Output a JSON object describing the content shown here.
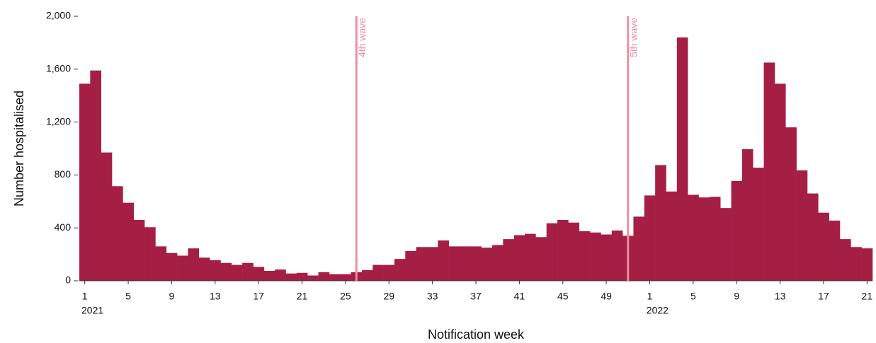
{
  "chart_data": {
    "type": "bar",
    "x_label": "Notification week",
    "y_label": "Number hospitalised",
    "categories": [
      "1",
      null,
      null,
      null,
      "5",
      null,
      null,
      null,
      "9",
      null,
      null,
      null,
      "13",
      null,
      null,
      null,
      "17",
      null,
      null,
      null,
      "21",
      null,
      null,
      null,
      "25",
      null,
      null,
      null,
      "29",
      null,
      null,
      null,
      "33",
      null,
      null,
      null,
      "37",
      null,
      null,
      null,
      "41",
      null,
      null,
      null,
      "45",
      null,
      null,
      null,
      "49",
      null,
      null,
      null,
      "1",
      null,
      null,
      null,
      "5",
      null,
      null,
      null,
      "9",
      null,
      null,
      null,
      "13",
      null,
      null,
      null,
      "17",
      null,
      null,
      null,
      "21"
    ],
    "groups": [
      {
        "label": "2021",
        "size": 52
      },
      {
        "label": "2022",
        "size": 21
      }
    ],
    "values": [
      1490,
      1590,
      970,
      715,
      590,
      460,
      405,
      260,
      210,
      190,
      245,
      175,
      155,
      135,
      120,
      135,
      105,
      75,
      85,
      55,
      60,
      40,
      65,
      50,
      50,
      65,
      80,
      120,
      120,
      165,
      225,
      255,
      255,
      305,
      260,
      260,
      260,
      250,
      270,
      315,
      345,
      355,
      330,
      435,
      460,
      440,
      375,
      365,
      350,
      380,
      340,
      485,
      645,
      875,
      675,
      1840,
      650,
      630,
      635,
      550,
      755,
      995,
      855,
      1650,
      1490,
      1160,
      835,
      660,
      515,
      455,
      315,
      255,
      245
    ],
    "color": "#a51f45",
    "ylim": [
      0,
      2000
    ],
    "yticks": [
      0,
      400,
      800,
      {
        "value": 1200,
        "label": "1,200"
      },
      {
        "value": 1600,
        "label": "1,600"
      },
      {
        "value": 2000,
        "label": "2,000"
      }
    ],
    "annotations": [
      {
        "text": "4th wave",
        "group": "2021",
        "week": 26
      },
      {
        "text": "5th wave",
        "group": "2021",
        "week": 51
      }
    ],
    "annotation_color": "#ef8da2"
  }
}
